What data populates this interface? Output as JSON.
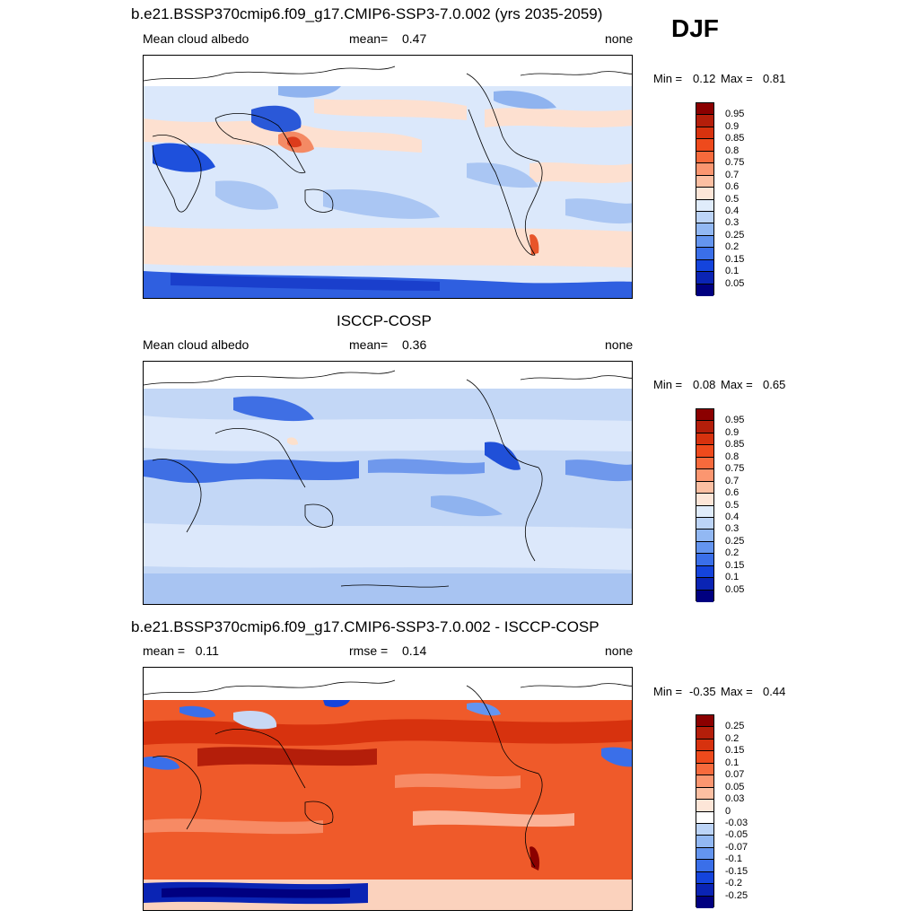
{
  "season": "DJF",
  "panels": [
    {
      "id": "model",
      "title": "b.e21.BSSP370cmip6.f09_g17.CMIP6-SSP3-7.0.002 (yrs 2035-2059)",
      "left": "Mean cloud albedo",
      "center_label": "mean=",
      "center_value": "0.47",
      "right": "none",
      "min_label": "Min =",
      "min_value": "0.12",
      "max_label": "Max =",
      "max_value": "0.81",
      "colorbar": {
        "labels": [
          "0.95",
          "0.9",
          "0.85",
          "0.8",
          "0.75",
          "0.7",
          "0.6",
          "0.5",
          "0.4",
          "0.3",
          "0.25",
          "0.2",
          "0.15",
          "0.1",
          "0.05"
        ],
        "colors": [
          "#8b0000",
          "#b41e0a",
          "#d7320e",
          "#ee4a1c",
          "#f76a3c",
          "#fb9670",
          "#fcbfa2",
          "#fde6d8",
          "#e0ecfb",
          "#bcd4f7",
          "#92b8f3",
          "#6495ef",
          "#3a6fe9",
          "#1444dc",
          "#0a24b4",
          "#000080"
        ]
      }
    },
    {
      "id": "obs",
      "title": "ISCCP-COSP",
      "left": "Mean cloud albedo",
      "center_label": "mean=",
      "center_value": "0.36",
      "right": "none",
      "min_label": "Min =",
      "min_value": "0.08",
      "max_label": "Max =",
      "max_value": "0.65",
      "colorbar": {
        "labels": [
          "0.95",
          "0.9",
          "0.85",
          "0.8",
          "0.75",
          "0.7",
          "0.6",
          "0.5",
          "0.4",
          "0.3",
          "0.25",
          "0.2",
          "0.15",
          "0.1",
          "0.05"
        ],
        "colors": [
          "#8b0000",
          "#b41e0a",
          "#d7320e",
          "#ee4a1c",
          "#f76a3c",
          "#fb9670",
          "#fcbfa2",
          "#fde6d8",
          "#e0ecfb",
          "#bcd4f7",
          "#92b8f3",
          "#6495ef",
          "#3a6fe9",
          "#1444dc",
          "#0a24b4",
          "#000080"
        ]
      }
    },
    {
      "id": "diff",
      "title": "b.e21.BSSP370cmip6.f09_g17.CMIP6-SSP3-7.0.002 - ISCCP-COSP",
      "left": "mean =   0.11",
      "center_label": "rmse =",
      "center_value": "0.14",
      "right": "none",
      "min_label": "Min =",
      "min_value": "-0.35",
      "max_label": "Max =",
      "max_value": "0.44",
      "colorbar": {
        "labels": [
          "0.25",
          "0.2",
          "0.15",
          "0.1",
          "0.07",
          "0.05",
          "0.03",
          "0",
          "-0.03",
          "-0.05",
          "-0.07",
          "-0.1",
          "-0.15",
          "-0.2",
          "-0.25"
        ],
        "colors": [
          "#8b0000",
          "#b41e0a",
          "#d7320e",
          "#ee4a1c",
          "#f76a3c",
          "#fb9670",
          "#fcbfa2",
          "#fde6d8",
          "#ffffff",
          "#bcd4f7",
          "#92b8f3",
          "#6495ef",
          "#3a6fe9",
          "#1444dc",
          "#0a24b4",
          "#000080"
        ]
      }
    }
  ]
}
